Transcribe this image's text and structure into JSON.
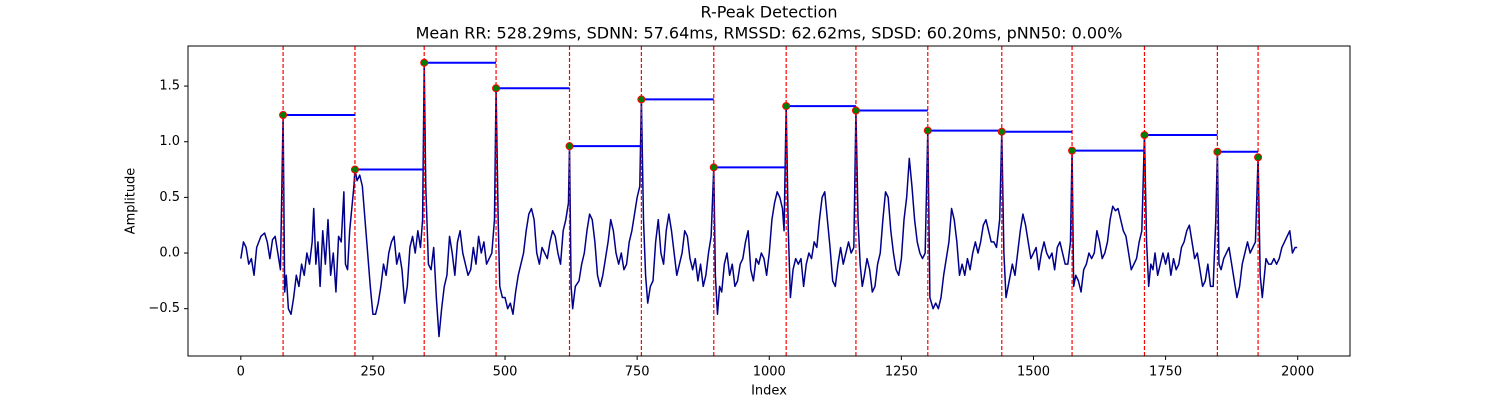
{
  "chart_data": {
    "type": "line",
    "title": "R-Peak Detection",
    "subtitle": "Mean RR: 528.29ms, SDNN: 57.64ms, RMSSD: 62.62ms, SDSD: 60.20ms, pNN50: 0.00%",
    "xlabel": "Index",
    "ylabel": "Amplitude",
    "xlim": [
      -99.95,
      2098.95
    ],
    "ylim": [
      -0.925,
      1.86
    ],
    "xticks": [
      0,
      250,
      500,
      750,
      1000,
      1250,
      1500,
      1750,
      2000
    ],
    "yticks": [
      {
        "value": -0.5,
        "label": "−0.5"
      },
      {
        "value": 0,
        "label": "0.0"
      },
      {
        "value": 0.5,
        "label": "0.5"
      },
      {
        "value": 1,
        "label": "1.0"
      },
      {
        "value": 1.5,
        "label": "1.5"
      }
    ],
    "series": [
      {
        "color": "#00008b",
        "x": [
          0,
          5,
          10,
          15,
          20,
          25,
          30,
          38,
          45,
          50,
          55,
          60,
          65,
          70,
          75,
          80,
          83,
          86,
          90,
          95,
          100,
          105,
          110,
          115,
          120,
          125,
          130,
          135,
          138,
          142,
          146,
          150,
          155,
          160,
          165,
          170,
          175,
          180,
          185,
          190,
          195,
          198,
          202,
          206,
          210,
          214,
          216,
          220,
          225,
          230,
          235,
          240,
          245,
          250,
          255,
          260,
          265,
          270,
          275,
          280,
          285,
          290,
          295,
          300,
          305,
          310,
          315,
          320,
          325,
          330,
          335,
          340,
          344,
          347,
          350,
          355,
          360,
          365,
          370,
          375,
          380,
          385,
          390,
          395,
          400,
          405,
          410,
          415,
          420,
          425,
          430,
          435,
          440,
          445,
          450,
          455,
          460,
          465,
          470,
          475,
          480,
          483,
          487,
          490,
          495,
          500,
          505,
          510,
          515,
          520,
          525,
          530,
          535,
          540,
          545,
          550,
          555,
          560,
          565,
          570,
          575,
          580,
          585,
          590,
          595,
          600,
          605,
          610,
          615,
          620,
          622,
          625,
          628,
          633,
          640,
          645,
          650,
          655,
          660,
          665,
          670,
          675,
          680,
          685,
          690,
          695,
          700,
          705,
          710,
          715,
          720,
          725,
          730,
          735,
          740,
          745,
          750,
          755,
          758,
          762,
          766,
          770,
          775,
          780,
          785,
          790,
          795,
          800,
          805,
          810,
          815,
          820,
          825,
          830,
          835,
          840,
          845,
          850,
          855,
          860,
          865,
          870,
          875,
          880,
          885,
          890,
          895,
          898,
          902,
          906,
          910,
          915,
          920,
          925,
          930,
          935,
          940,
          945,
          950,
          955,
          960,
          965,
          970,
          975,
          980,
          985,
          990,
          995,
          1000,
          1005,
          1010,
          1015,
          1020,
          1025,
          1028,
          1032,
          1036,
          1040,
          1045,
          1050,
          1055,
          1060,
          1065,
          1070,
          1075,
          1080,
          1085,
          1090,
          1095,
          1100,
          1105,
          1110,
          1115,
          1120,
          1125,
          1130,
          1135,
          1140,
          1145,
          1150,
          1155,
          1160,
          1164,
          1168,
          1172,
          1176,
          1180,
          1185,
          1190,
          1195,
          1200,
          1205,
          1210,
          1215,
          1220,
          1225,
          1230,
          1235,
          1240,
          1245,
          1250,
          1255,
          1260,
          1265,
          1270,
          1275,
          1280,
          1285,
          1290,
          1295,
          1300,
          1304,
          1310,
          1315,
          1320,
          1325,
          1330,
          1335,
          1340,
          1345,
          1350,
          1355,
          1360,
          1365,
          1370,
          1375,
          1380,
          1385,
          1390,
          1395,
          1400,
          1405,
          1410,
          1415,
          1420,
          1425,
          1430,
          1436,
          1440,
          1444,
          1448,
          1452,
          1456,
          1460,
          1465,
          1470,
          1475,
          1480,
          1485,
          1490,
          1495,
          1500,
          1505,
          1510,
          1515,
          1520,
          1525,
          1530,
          1535,
          1540,
          1545,
          1550,
          1555,
          1560,
          1565,
          1570,
          1573,
          1576,
          1580,
          1585,
          1590,
          1595,
          1600,
          1605,
          1610,
          1615,
          1620,
          1625,
          1630,
          1635,
          1640,
          1645,
          1650,
          1655,
          1660,
          1665,
          1670,
          1675,
          1680,
          1685,
          1690,
          1695,
          1700,
          1705,
          1710,
          1714,
          1718,
          1722,
          1726,
          1730,
          1735,
          1740,
          1745,
          1750,
          1755,
          1760,
          1765,
          1770,
          1775,
          1780,
          1785,
          1790,
          1795,
          1800,
          1805,
          1810,
          1815,
          1820,
          1825,
          1830,
          1835,
          1840,
          1845,
          1848,
          1851,
          1855,
          1860,
          1865,
          1870,
          1875,
          1880,
          1885,
          1890,
          1895,
          1900,
          1905,
          1910,
          1915,
          1920,
          1925,
          1929,
          1933,
          1937,
          1940,
          1945,
          1950,
          1955,
          1960,
          1965,
          1970,
          1975,
          1980,
          1985,
          1990,
          1995,
          1999
        ],
        "values": [
          -0.05,
          0.1,
          0.05,
          -0.1,
          -0.05,
          -0.2,
          0.05,
          0.15,
          0.18,
          0.1,
          -0.05,
          0.12,
          0.15,
          0.0,
          -0.15,
          1.24,
          -0.35,
          -0.2,
          -0.5,
          -0.55,
          -0.4,
          -0.2,
          -0.3,
          -0.1,
          -0.2,
          0.0,
          -0.1,
          0.1,
          0.4,
          -0.1,
          0.1,
          -0.3,
          0.2,
          -0.1,
          0.3,
          -0.2,
          0.0,
          -0.35,
          0.15,
          0.1,
          0.55,
          -0.1,
          -0.15,
          0.2,
          0.4,
          0.6,
          0.75,
          0.65,
          0.7,
          0.6,
          0.3,
          0.0,
          -0.3,
          -0.55,
          -0.55,
          -0.45,
          -0.3,
          -0.1,
          -0.2,
          0.0,
          0.1,
          0.15,
          -0.1,
          0.0,
          -0.15,
          -0.45,
          -0.3,
          0.05,
          0.15,
          0.0,
          0.2,
          0.05,
          0.3,
          1.71,
          0.6,
          -0.1,
          -0.15,
          0.05,
          -0.4,
          -0.75,
          -0.5,
          -0.3,
          -0.2,
          0.15,
          0.0,
          -0.2,
          0.1,
          0.2,
          0.0,
          -0.1,
          -0.2,
          -0.15,
          0.05,
          -0.1,
          0.15,
          0.0,
          0.1,
          -0.1,
          -0.05,
          0.0,
          0.3,
          1.48,
          0.3,
          -0.3,
          -0.4,
          -0.4,
          -0.5,
          -0.45,
          -0.55,
          -0.35,
          -0.2,
          -0.1,
          0.0,
          0.2,
          0.35,
          0.4,
          0.3,
          0.0,
          -0.1,
          0.05,
          0.0,
          -0.05,
          0.1,
          0.2,
          0.15,
          0.0,
          -0.1,
          0.2,
          0.3,
          0.45,
          0.96,
          -0.3,
          -0.5,
          -0.3,
          -0.25,
          -0.1,
          0.0,
          0.2,
          0.35,
          0.3,
          0.1,
          -0.2,
          -0.3,
          -0.2,
          -0.05,
          0.1,
          0.3,
          0.2,
          0.0,
          -0.1,
          0.0,
          -0.15,
          -0.1,
          0.1,
          0.2,
          0.35,
          0.5,
          0.6,
          1.38,
          0.3,
          -0.2,
          -0.45,
          -0.3,
          -0.25,
          0.1,
          0.3,
          0.0,
          -0.1,
          0.2,
          0.35,
          0.2,
          0.0,
          -0.2,
          -0.1,
          0.0,
          0.2,
          0.15,
          -0.05,
          -0.15,
          -0.05,
          -0.25,
          -0.1,
          -0.3,
          -0.2,
          0.0,
          0.15,
          0.77,
          -0.2,
          -0.55,
          -0.3,
          -0.35,
          -0.1,
          0.0,
          -0.2,
          -0.1,
          -0.3,
          -0.25,
          -0.1,
          -0.05,
          0.1,
          0.2,
          -0.15,
          -0.25,
          -0.05,
          -0.1,
          0.0,
          -0.05,
          -0.2,
          0.0,
          0.3,
          0.45,
          0.55,
          0.5,
          0.4,
          0.2,
          1.32,
          0.2,
          -0.4,
          -0.15,
          -0.05,
          -0.1,
          -0.05,
          -0.3,
          -0.1,
          0.0,
          -0.05,
          0.1,
          0.05,
          0.3,
          0.5,
          0.55,
          0.3,
          0.05,
          -0.25,
          -0.3,
          -0.1,
          0.05,
          -0.1,
          0.0,
          0.1,
          0.0,
          0.05,
          1.28,
          0.3,
          -0.1,
          -0.3,
          -0.2,
          -0.05,
          -0.15,
          -0.35,
          -0.3,
          -0.1,
          0.0,
          0.3,
          0.55,
          0.5,
          0.2,
          0.0,
          -0.15,
          -0.2,
          -0.05,
          0.3,
          0.5,
          0.85,
          0.6,
          0.3,
          0.1,
          0.0,
          -0.05,
          0.0,
          1.1,
          -0.4,
          -0.5,
          -0.45,
          -0.5,
          -0.4,
          -0.2,
          -0.05,
          0.1,
          0.4,
          0.3,
          0.1,
          -0.2,
          -0.1,
          -0.2,
          -0.05,
          -0.15,
          0.0,
          0.1,
          0.0,
          0.1,
          0.25,
          0.3,
          0.2,
          0.1,
          0.1,
          0.05,
          0.3,
          1.09,
          0.0,
          -0.4,
          -0.3,
          -0.2,
          -0.1,
          -0.2,
          0.0,
          0.2,
          0.35,
          0.25,
          0.1,
          -0.05,
          0.0,
          0.05,
          -0.15,
          0.0,
          0.1,
          0.0,
          -0.05,
          0.0,
          -0.15,
          0.05,
          0.1,
          0.0,
          -0.1,
          -0.1,
          0.1,
          0.92,
          -0.3,
          -0.2,
          -0.25,
          -0.35,
          -0.15,
          -0.1,
          0.0,
          -0.05,
          0.0,
          0.2,
          0.1,
          -0.05,
          0.0,
          0.1,
          0.3,
          0.42,
          0.38,
          0.4,
          0.3,
          0.2,
          0.15,
          0.0,
          -0.15,
          -0.1,
          -0.05,
          0.1,
          0.2,
          1.06,
          0.1,
          -0.3,
          -0.1,
          -0.15,
          0.0,
          -0.2,
          -0.1,
          0.0,
          -0.1,
          0.0,
          -0.2,
          -0.05,
          -0.15,
          -0.1,
          0.05,
          0.1,
          0.2,
          0.25,
          0.1,
          -0.05,
          0.0,
          -0.15,
          -0.3,
          -0.25,
          -0.1,
          -0.3,
          -0.3,
          0.3,
          0.91,
          -0.1,
          -0.15,
          -0.05,
          0.0,
          0.05,
          -0.1,
          -0.25,
          -0.4,
          -0.3,
          -0.1,
          0.0,
          0.1,
          0.0,
          0.05,
          0.1,
          0.86,
          -0.2,
          -0.4,
          -0.2,
          -0.05,
          -0.1,
          -0.1,
          -0.05,
          -0.1,
          -0.05,
          0.05,
          0.1,
          0.15,
          0.2,
          0.0,
          0.05,
          0.05
        ]
      }
    ],
    "peaks": {
      "x": [
        80,
        216,
        347,
        483,
        622,
        758,
        895,
        1032,
        1164,
        1300,
        1440,
        1573,
        1710,
        1848,
        1925
      ],
      "values": [
        1.24,
        0.75,
        1.71,
        1.48,
        0.96,
        1.38,
        0.77,
        1.32,
        1.28,
        1.1,
        1.09,
        0.92,
        1.06,
        0.91,
        0.86
      ],
      "color": "green",
      "edgecolor": "red",
      "vline_color": "red",
      "interval_color": "blue"
    }
  }
}
